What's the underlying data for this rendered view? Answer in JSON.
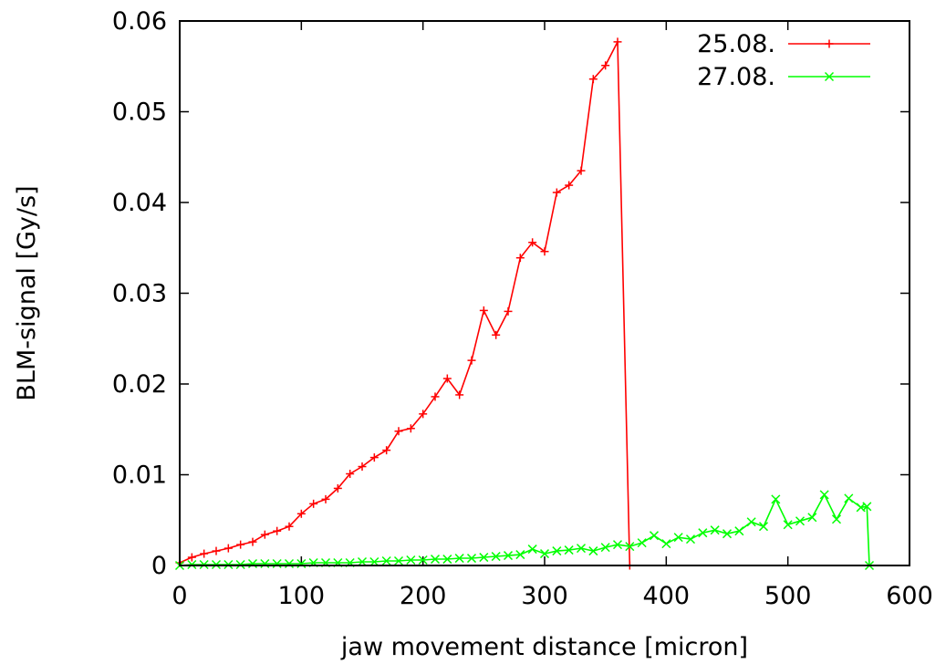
{
  "chart_data": {
    "type": "line",
    "title": "",
    "xlabel": "jaw movement distance [micron]",
    "ylabel": "BLM-signal [Gy/s]",
    "xlim": [
      0,
      600
    ],
    "ylim": [
      0,
      0.06
    ],
    "x_ticks": [
      0,
      100,
      200,
      300,
      400,
      500,
      600
    ],
    "x_tick_labels": [
      "0",
      "100",
      "200",
      "300",
      "400",
      "500",
      "600"
    ],
    "y_ticks": [
      0,
      0.01,
      0.02,
      0.03,
      0.04,
      0.05,
      0.06
    ],
    "y_tick_labels": [
      "0",
      "0.01",
      "0.02",
      "0.03",
      "0.04",
      "0.05",
      "0.06"
    ],
    "grid": false,
    "legend_position": "top-right",
    "series": [
      {
        "name": "25.08.",
        "color": "#ff0000",
        "marker": "plus",
        "x": [
          0,
          10,
          20,
          30,
          40,
          50,
          60,
          70,
          80,
          90,
          100,
          110,
          120,
          130,
          140,
          150,
          160,
          170,
          180,
          190,
          200,
          210,
          220,
          230,
          240,
          250,
          260,
          270,
          280,
          290,
          300,
          310,
          320,
          330,
          340,
          350,
          360,
          370
        ],
        "y": [
          0.0003,
          0.0009,
          0.0013,
          0.0016,
          0.0019,
          0.0023,
          0.0026,
          0.0034,
          0.0038,
          0.0043,
          0.0057,
          0.0068,
          0.0073,
          0.0085,
          0.0101,
          0.0109,
          0.0119,
          0.0127,
          0.0148,
          0.0151,
          0.0167,
          0.0186,
          0.0206,
          0.0188,
          0.0226,
          0.0281,
          0.0254,
          0.028,
          0.0339,
          0.0356,
          0.0346,
          0.0411,
          0.0419,
          0.0435,
          0.0536,
          0.0551,
          0.0577,
          0.0
        ]
      },
      {
        "name": "27.08.",
        "color": "#00ff00",
        "marker": "cross",
        "x": [
          0,
          10,
          20,
          30,
          40,
          50,
          60,
          70,
          80,
          90,
          100,
          110,
          120,
          130,
          140,
          150,
          160,
          170,
          180,
          190,
          200,
          210,
          220,
          230,
          240,
          250,
          260,
          270,
          280,
          290,
          300,
          310,
          320,
          330,
          340,
          350,
          360,
          370,
          380,
          390,
          400,
          410,
          420,
          430,
          440,
          450,
          460,
          470,
          480,
          490,
          500,
          510,
          520,
          530,
          540,
          550,
          560,
          565,
          567
        ],
        "y": [
          0.0,
          0.0001,
          0.0001,
          0.0001,
          0.0001,
          0.0001,
          0.0002,
          0.0002,
          0.0002,
          0.0002,
          0.0002,
          0.0003,
          0.0003,
          0.0003,
          0.0003,
          0.0004,
          0.0004,
          0.0005,
          0.0005,
          0.0006,
          0.0006,
          0.0007,
          0.0007,
          0.0008,
          0.0008,
          0.0009,
          0.001,
          0.0011,
          0.0012,
          0.0018,
          0.0013,
          0.0016,
          0.0017,
          0.0019,
          0.0016,
          0.002,
          0.0023,
          0.0021,
          0.0025,
          0.0033,
          0.0024,
          0.0031,
          0.0029,
          0.0036,
          0.0039,
          0.0035,
          0.0038,
          0.0048,
          0.0043,
          0.0073,
          0.0045,
          0.0049,
          0.0053,
          0.0078,
          0.0051,
          0.0074,
          0.0064,
          0.0065,
          0.0
        ]
      }
    ]
  }
}
